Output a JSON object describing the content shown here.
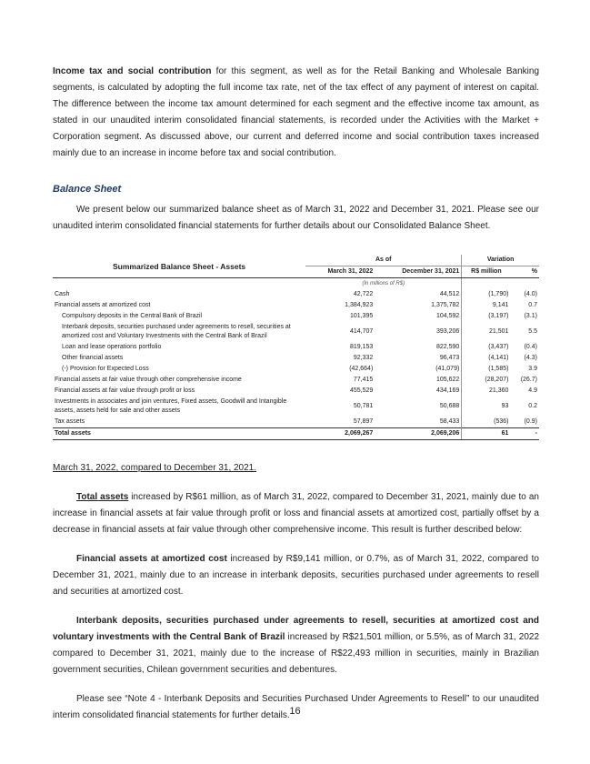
{
  "para1_bold": "Income tax and social contribution",
  "para1_rest": " for this segment, as well as for the Retail Banking and Wholesale Banking segments, is calculated by adopting the full income tax rate, net of the tax effect of any payment of interest on capital. The difference between the income tax amount determined for each segment and the effective income tax amount, as stated in our unaudited interim consolidated financial statements, is recorded under the Activities with the Market + Corporation segment. As discussed above, our current and deferred income and social contribution taxes increased mainly due to an increase in income before tax and social contribution.",
  "section_heading": "Balance Sheet",
  "para2": "We present below our summarized balance sheet as of March 31, 2022 and December 31, 2021. Please see our unaudited interim consolidated financial statements for further details about our Consolidated Balance Sheet.",
  "table": {
    "title": "Summarized Balance Sheet - Assets",
    "as_of": "As of",
    "variation": "Variation",
    "cols": [
      "March 31, 2022",
      "December 31, 2021",
      "R$ million",
      "%"
    ],
    "unit": "(In millions of R$)",
    "rows": [
      {
        "label": "Cash",
        "v": [
          "42,722",
          "44,512",
          "(1,790)",
          "(4.0)"
        ],
        "sub": false
      },
      {
        "label": "Financial assets at amortized cost",
        "v": [
          "1,384,923",
          "1,375,782",
          "9,141",
          "0.7"
        ],
        "sub": false
      },
      {
        "label": "Compulsory deposits in the Central Bank of Brazil",
        "v": [
          "101,395",
          "104,592",
          "(3,197)",
          "(3.1)"
        ],
        "sub": true
      },
      {
        "label": "Interbank deposits, securities purchased under agreements to resell, securities at amortized cost and Voluntary Investments with the Central Bank of Brazil",
        "v": [
          "414,707",
          "393,206",
          "21,501",
          "5.5"
        ],
        "sub": true
      },
      {
        "label": "Loan and lease operations portfolio",
        "v": [
          "819,153",
          "822,590",
          "(3,437)",
          "(0.4)"
        ],
        "sub": true
      },
      {
        "label": "Other financial assets",
        "v": [
          "92,332",
          "96,473",
          "(4,141)",
          "(4.3)"
        ],
        "sub": true
      },
      {
        "label": "(-) Provision for Expected Loss",
        "v": [
          "(42,664)",
          "(41,079)",
          "(1,585)",
          "3.9"
        ],
        "sub": true
      },
      {
        "label": "Financial assets at fair value through other comprehensive income",
        "v": [
          "77,415",
          "105,622",
          "(28,207)",
          "(26.7)"
        ],
        "sub": false
      },
      {
        "label": "Financial assets at fair value through profit or loss",
        "v": [
          "455,529",
          "434,169",
          "21,360",
          "4.9"
        ],
        "sub": false
      },
      {
        "label": "Investments in associates and join ventures, Fixed assets, Goodwill and Intangible assets, assets held for sale and other assets",
        "v": [
          "50,781",
          "50,688",
          "93",
          "0.2"
        ],
        "sub": false
      },
      {
        "label": "Tax assets",
        "v": [
          "57,897",
          "58,433",
          "(536)",
          "(0.9)"
        ],
        "sub": false
      }
    ],
    "total": {
      "label": "Total assets",
      "v": [
        "2,069,267",
        "2,069,206",
        "61",
        "-"
      ]
    }
  },
  "compare_heading": "March 31, 2022, compared to December 31, 2021.",
  "para3_bold": "Total assets",
  "para3_rest": " increased by R$61 million, as of March 31, 2022, compared to December 31, 2021, mainly due to an increase in financial assets at fair value through profit or loss and financial assets at amortized cost, partially offset by a decrease in financial assets at fair value through other comprehensive income. This result is further described below:",
  "para4_bold": "Financial assets at amortized cost",
  "para4_rest": " increased by R$9,141 million, or 0.7%, as of March 31, 2022, compared to December 31, 2021, mainly due to an increase in interbank deposits, securities purchased under agreements to resell and securities at amortized cost.",
  "para5_bold": "Interbank deposits, securities purchased under agreements to resell, securities at amortized cost and voluntary investments with the Central Bank of Brazil",
  "para5_rest": " increased by R$21,501 million, or 5.5%, as of March 31, 2022 compared to December 31, 2021, mainly due to the increase of R$22,493 million in securities, mainly in Brazilian government securities, Chilean government securities and debentures.",
  "para6": "Please see “Note 4 - Interbank Deposits and Securities Purchased Under Agreements to Resell” to our unaudited interim consolidated financial statements for further details.",
  "page_number": "16"
}
